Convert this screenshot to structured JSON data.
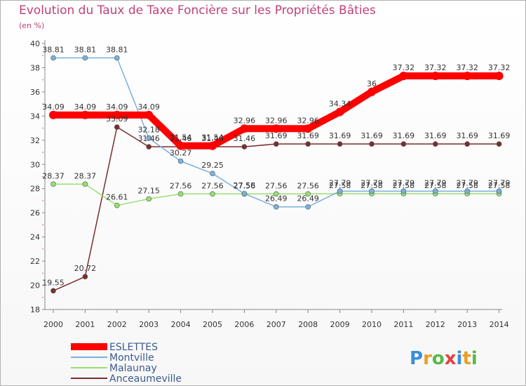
{
  "chart_data": {
    "type": "line",
    "title": "Evolution du Taux de Taxe Foncière sur les Propriétés Bâties",
    "subtitle": "(en %)",
    "xlabel": "",
    "ylabel": "(en %)",
    "ylim": [
      18,
      40
    ],
    "yticks": [
      18,
      20,
      22,
      24,
      26,
      28,
      30,
      32,
      34,
      36,
      38,
      40
    ],
    "grid": false,
    "legend_position": "bottom-left",
    "categories": [
      "2000",
      "2001",
      "2002",
      "2003",
      "2004",
      "2005",
      "2006",
      "2007",
      "2008",
      "2009",
      "2010",
      "2011",
      "2012",
      "2013",
      "2014"
    ],
    "series": [
      {
        "name": "ESLETTES",
        "color": "#ff0000",
        "values": [
          34.09,
          34.09,
          34.09,
          34.09,
          31.54,
          31.54,
          32.96,
          32.96,
          32.96,
          34.34,
          36,
          37.32,
          37.32,
          37.32,
          37.32
        ],
        "labels": [
          "34.09",
          "34.09",
          "34.09",
          "34.09",
          "31.54",
          "31.54",
          "32.96",
          "32.96",
          "32.96",
          "34.34",
          "36",
          "37.32",
          "37.32",
          "37.32",
          "37.32"
        ]
      },
      {
        "name": "Montville",
        "color": "#7ab0dd",
        "values": [
          38.81,
          38.81,
          38.81,
          32.18,
          30.27,
          29.25,
          27.58,
          26.49,
          26.49,
          27.79,
          27.79,
          27.79,
          27.79,
          27.79,
          27.79
        ],
        "labels": [
          "38.81",
          "38.81",
          "38.81",
          "32.18",
          "30.27",
          "29.25",
          "27.58",
          "26.49",
          "26.49",
          "27.79",
          "27.79",
          "27.79",
          "27.79",
          "27.79",
          "27.79"
        ]
      },
      {
        "name": "Malaunay",
        "color": "#98e070",
        "values": [
          28.37,
          28.37,
          26.61,
          27.15,
          27.56,
          27.56,
          27.56,
          27.56,
          27.56,
          27.58,
          27.58,
          27.58,
          27.58,
          27.58,
          27.58
        ],
        "labels": [
          "28.37",
          "28.37",
          "26.61",
          "27.15",
          "27.56",
          "27.56",
          "27.56",
          "27.56",
          "27.56",
          "27.58",
          "27.58",
          "27.58",
          "27.58",
          "27.58",
          "27.58"
        ]
      },
      {
        "name": "Anceaumeville",
        "color": "#7a2e2e",
        "values": [
          19.55,
          20.72,
          33.09,
          31.46,
          31.46,
          31.46,
          31.46,
          31.69,
          31.69,
          31.69,
          31.69,
          31.69,
          31.69,
          31.69,
          31.69
        ],
        "labels": [
          "19.55",
          "20.72",
          "33.09",
          "31.46",
          "31.46",
          "31.46",
          "31.46",
          "31.69",
          "31.69",
          "31.69",
          "31.69",
          "31.69",
          "31.69",
          "31.69",
          "31.69"
        ]
      }
    ],
    "logo_text": "Proxiti"
  }
}
